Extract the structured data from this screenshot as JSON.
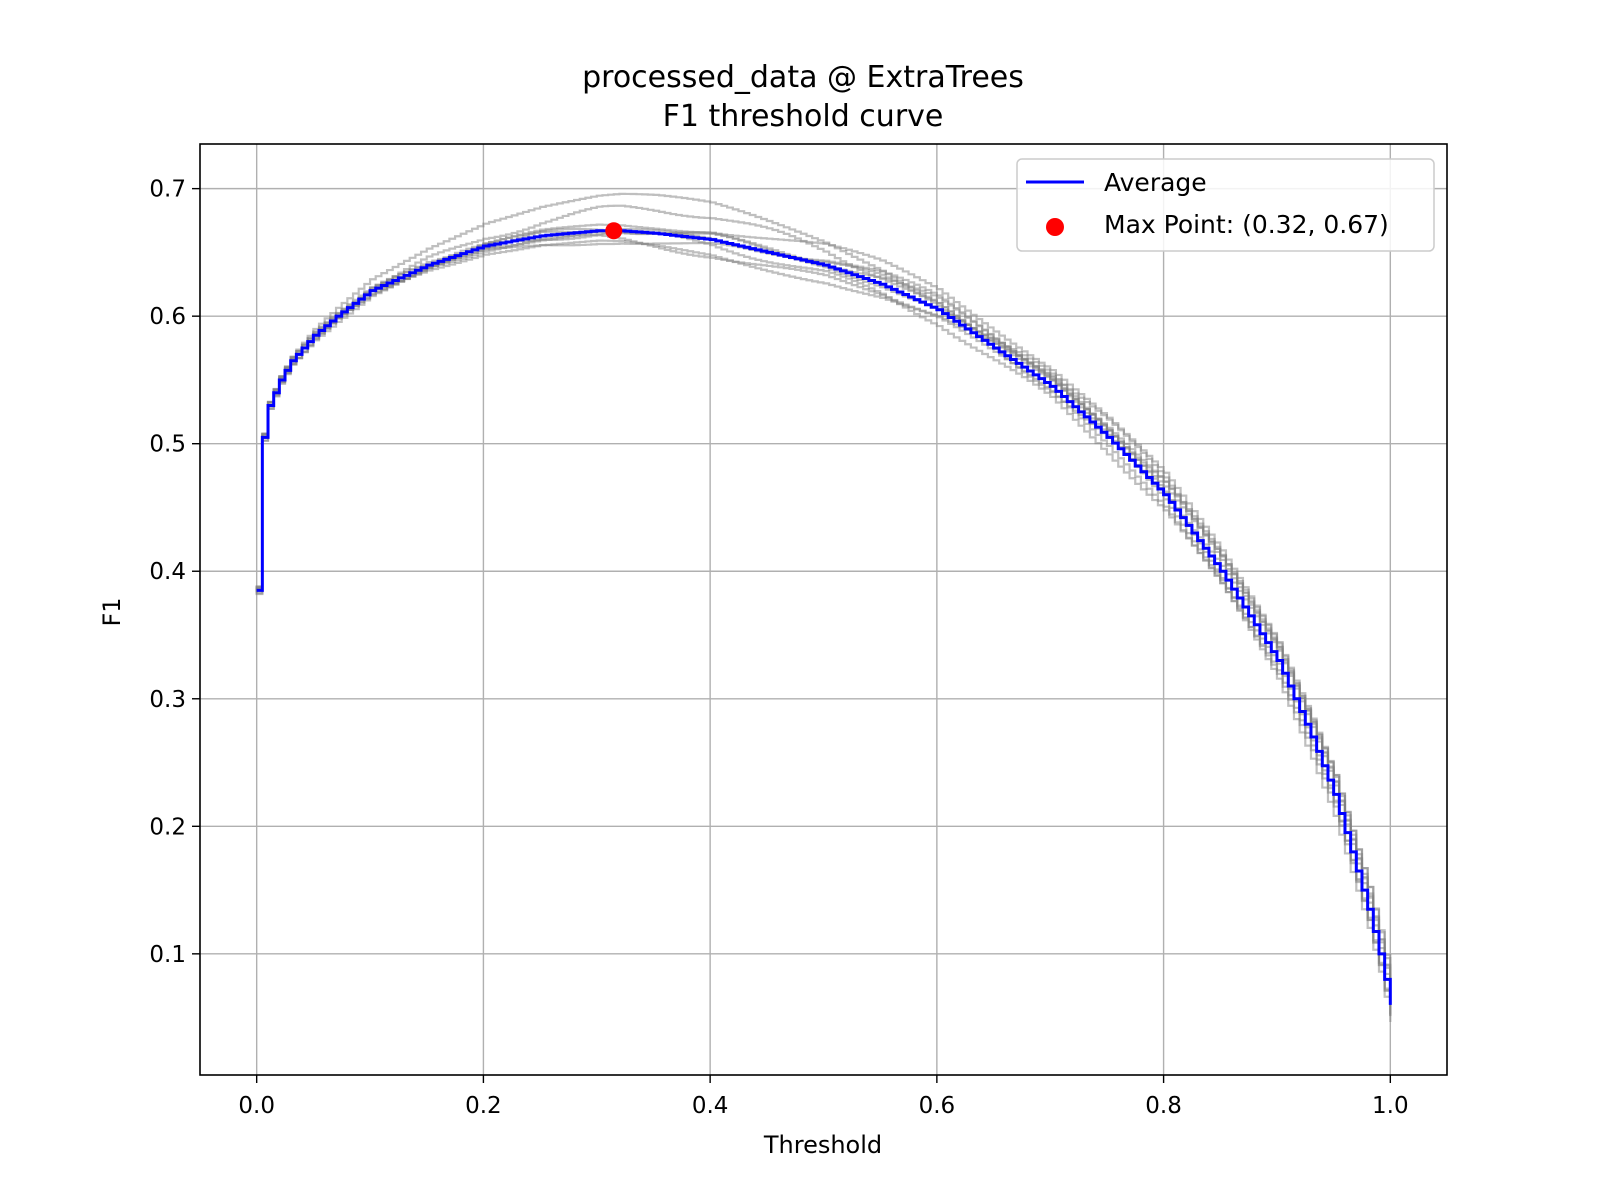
{
  "chart_data": {
    "type": "line",
    "title": "processed_data @ ExtraTrees",
    "subtitle": "F1 threshold curve",
    "xlabel": "Threshold",
    "ylabel": "F1",
    "xlim": [
      -0.05,
      1.05
    ],
    "ylim": [
      0.005,
      0.735
    ],
    "xticks": [
      0.0,
      0.2,
      0.4,
      0.6,
      0.8,
      1.0
    ],
    "xtick_labels": [
      "0.0",
      "0.2",
      "0.4",
      "0.6",
      "0.8",
      "1.0"
    ],
    "yticks": [
      0.1,
      0.2,
      0.3,
      0.4,
      0.5,
      0.6,
      0.7
    ],
    "ytick_labels": [
      "0.1",
      "0.2",
      "0.3",
      "0.4",
      "0.5",
      "0.6",
      "0.7"
    ],
    "grid": true,
    "legend_position": "top-right",
    "colors": {
      "average": "#0000ff",
      "fold": "#808080",
      "max_point": "#ff0000"
    },
    "series": [
      {
        "name": "Average",
        "x": [
          0.0,
          0.002,
          0.005,
          0.01,
          0.02,
          0.03,
          0.05,
          0.07,
          0.1,
          0.15,
          0.2,
          0.25,
          0.3,
          0.32,
          0.35,
          0.4,
          0.45,
          0.5,
          0.55,
          0.6,
          0.65,
          0.7,
          0.75,
          0.8,
          0.85,
          0.9,
          0.93,
          0.95,
          0.97,
          0.98,
          0.99,
          1.0
        ],
        "y": [
          0.385,
          0.5,
          0.505,
          0.53,
          0.55,
          0.565,
          0.585,
          0.6,
          0.62,
          0.64,
          0.655,
          0.663,
          0.667,
          0.667,
          0.665,
          0.66,
          0.65,
          0.64,
          0.625,
          0.605,
          0.575,
          0.545,
          0.505,
          0.46,
          0.4,
          0.33,
          0.27,
          0.225,
          0.165,
          0.135,
          0.1,
          0.06
        ]
      }
    ],
    "max_point": {
      "label": "Max Point: (0.32, 0.67)",
      "x": 0.315,
      "y": 0.667
    }
  }
}
